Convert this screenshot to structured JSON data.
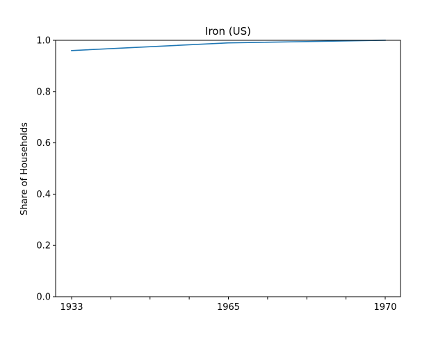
{
  "chart_data": {
    "type": "line",
    "title": "Iron (US)",
    "xlabel": "",
    "ylabel": "Share of Households",
    "x_tick_labels": [
      "1933",
      "1965",
      "1970"
    ],
    "series": [
      {
        "x": [
          "1933",
          "1965",
          "1970"
        ],
        "values": [
          0.96,
          0.99,
          1.0
        ],
        "color": "#1f77b4"
      }
    ],
    "ylim": [
      0,
      1
    ],
    "y_ticks": [
      "0.0",
      "0.2",
      "0.4",
      "0.6",
      "0.8",
      "1.0"
    ],
    "minor_x_ticks_between_labels": 3,
    "grid": false,
    "legend": "none"
  }
}
